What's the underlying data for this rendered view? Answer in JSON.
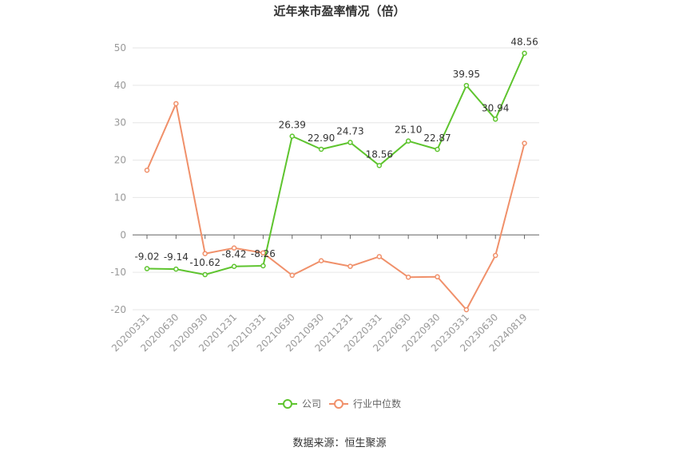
{
  "chart_data": {
    "type": "line",
    "title": "近年来市盈率情况（倍）",
    "categories": [
      "20200331",
      "20200630",
      "20200930",
      "20201231",
      "20210331",
      "20210630",
      "20210930",
      "20211231",
      "20220331",
      "20220630",
      "20220930",
      "20230331",
      "20230630",
      "20240819"
    ],
    "series": [
      {
        "name": "公司",
        "color": "#5ec42e",
        "values": [
          -9.02,
          -9.14,
          -10.62,
          -8.42,
          -8.26,
          26.39,
          22.9,
          24.73,
          18.56,
          25.1,
          22.87,
          39.95,
          30.94,
          48.56
        ],
        "labels": [
          "-9.02",
          "-9.14",
          "-10.62",
          "-8.42",
          "-8.26",
          "26.39",
          "22.90",
          "24.73",
          "18.56",
          "25.10",
          "22.87",
          "39.95",
          "30.94",
          "48.56"
        ]
      },
      {
        "name": "行业中位数",
        "color": "#f0906a",
        "values": [
          17.3,
          35.1,
          -5.0,
          -3.5,
          -4.8,
          -10.8,
          -6.9,
          -8.4,
          -5.8,
          -11.3,
          -11.2,
          -20.0,
          -5.5,
          24.5
        ]
      }
    ],
    "ylim": [
      -20,
      50
    ],
    "yticks": [
      "50",
      "40",
      "30",
      "20",
      "10",
      "0",
      "-10",
      "-20"
    ],
    "ytick_values": [
      50,
      40,
      30,
      20,
      10,
      0,
      -10,
      -20
    ],
    "grid": true,
    "legend_position": "bottom"
  },
  "source": "数据来源：恒生聚源"
}
